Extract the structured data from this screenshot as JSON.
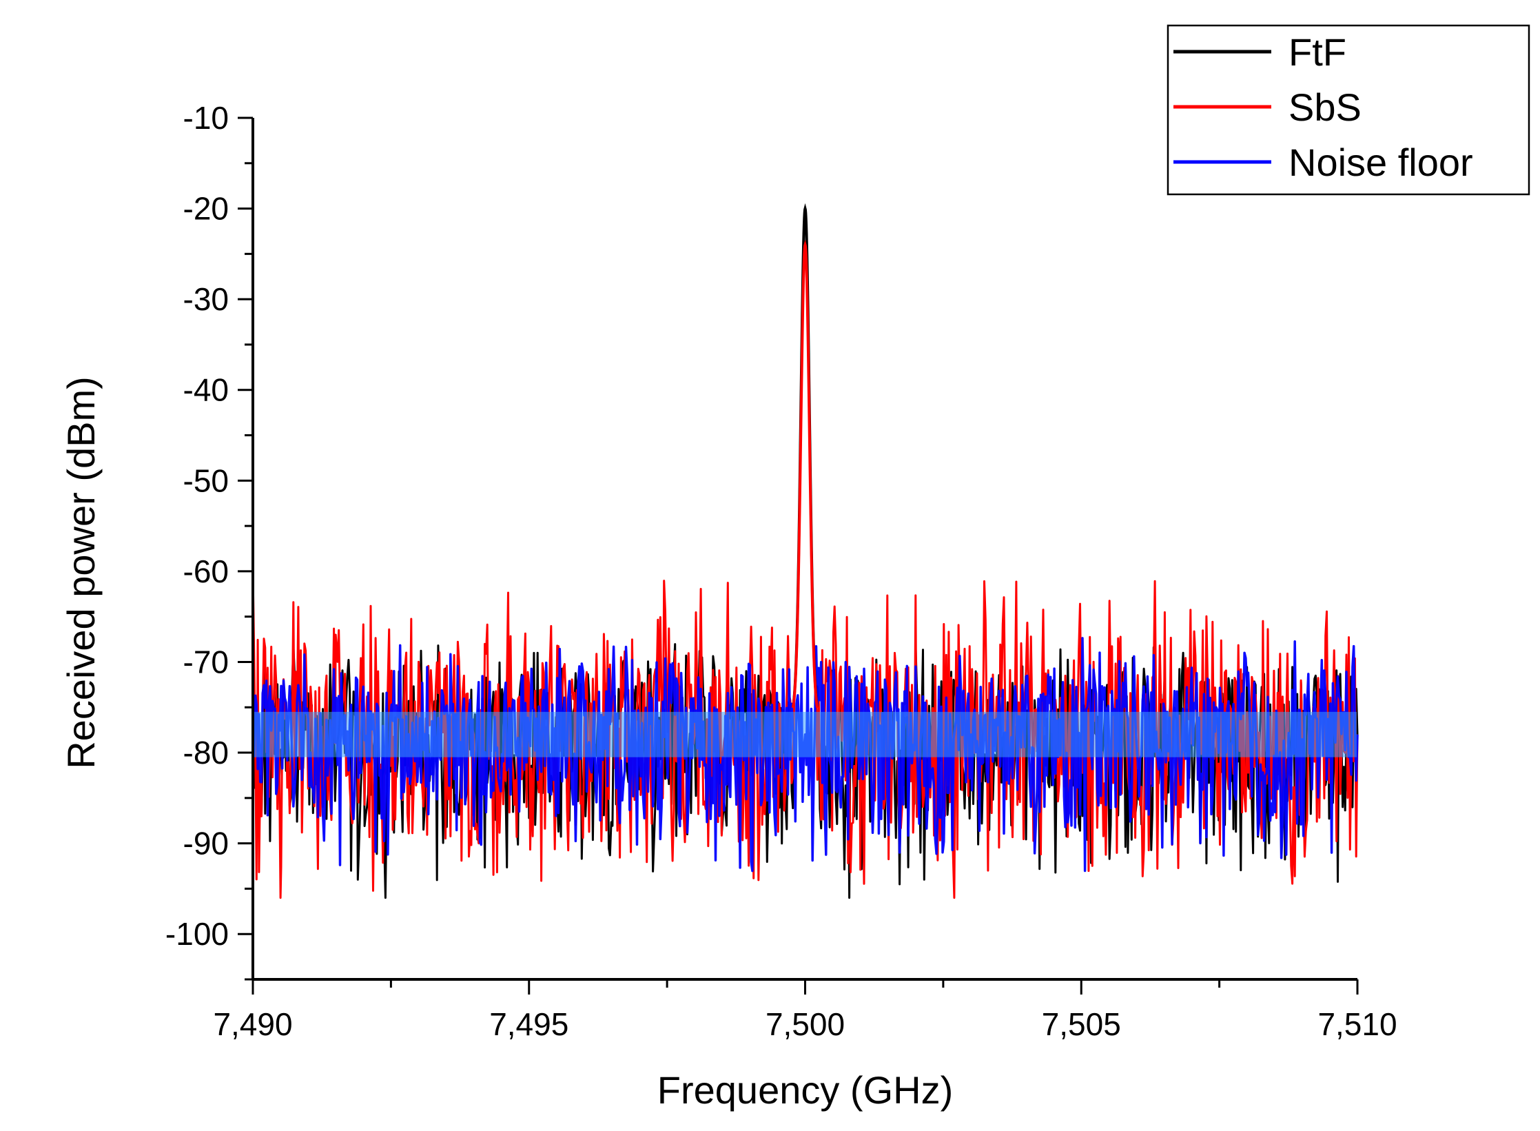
{
  "chart_data": {
    "type": "line",
    "title": "",
    "xlabel": "Frequency (GHz)",
    "ylabel": "Received power (dBm)",
    "xlim": [
      7.49,
      7.51
    ],
    "ylim": [
      -105,
      -10
    ],
    "x_ticks": [
      7.49,
      7.495,
      7.5,
      7.505,
      7.51
    ],
    "x_tick_labels": [
      "7,490",
      "7,495",
      "7,500",
      "7,505",
      "7,510"
    ],
    "y_ticks": [
      -10,
      -20,
      -30,
      -40,
      -50,
      -60,
      -70,
      -80,
      -90,
      -100
    ],
    "y_tick_labels": [
      "-10",
      "-20",
      "-30",
      "-40",
      "-50",
      "-60",
      "-70",
      "-80",
      "-90",
      "-100"
    ],
    "grid": false,
    "legend_position": "top-right",
    "series": [
      {
        "name": "FtF",
        "color": "#000000",
        "peak": {
          "x": 7.5,
          "y": -20
        },
        "x": [
          7.49,
          7.4919,
          7.4924,
          7.494,
          7.496,
          7.498,
          7.4996,
          7.4998,
          7.49995,
          7.5,
          7.50005,
          7.5002,
          7.5004,
          7.5008,
          7.5012,
          7.503,
          7.505,
          7.507,
          7.509,
          7.51
        ],
        "y": [
          -78,
          -94,
          -96,
          -77,
          -79,
          -78,
          -77,
          -50,
          -24,
          -20,
          -24,
          -50,
          -77,
          -96,
          -79,
          -78,
          -77,
          -79,
          -78,
          -78
        ],
        "noise_band": [
          -96,
          -67
        ]
      },
      {
        "name": "SbS",
        "color": "#ff0000",
        "peak": {
          "x": 7.5,
          "y": -24
        },
        "x": [
          7.49,
          7.4905,
          7.4915,
          7.494,
          7.496,
          7.498,
          7.4996,
          7.4998,
          7.49995,
          7.5,
          7.50005,
          7.5002,
          7.5004,
          7.5027,
          7.5035,
          7.505,
          7.507,
          7.509,
          7.51
        ],
        "y": [
          -60,
          -96,
          -67,
          -78,
          -77,
          -78,
          -77,
          -52,
          -26,
          -24,
          -26,
          -52,
          -77,
          -96,
          -78,
          -77,
          -79,
          -78,
          -78
        ],
        "noise_band": [
          -96,
          -60
        ]
      },
      {
        "name": "Noise floor",
        "color": "#0000ff",
        "x": [
          7.49,
          7.495,
          7.5,
          7.505,
          7.51
        ],
        "y": [
          -78,
          -78,
          -78,
          -78,
          -78
        ],
        "noise_band": [
          -94,
          -67
        ]
      }
    ]
  }
}
